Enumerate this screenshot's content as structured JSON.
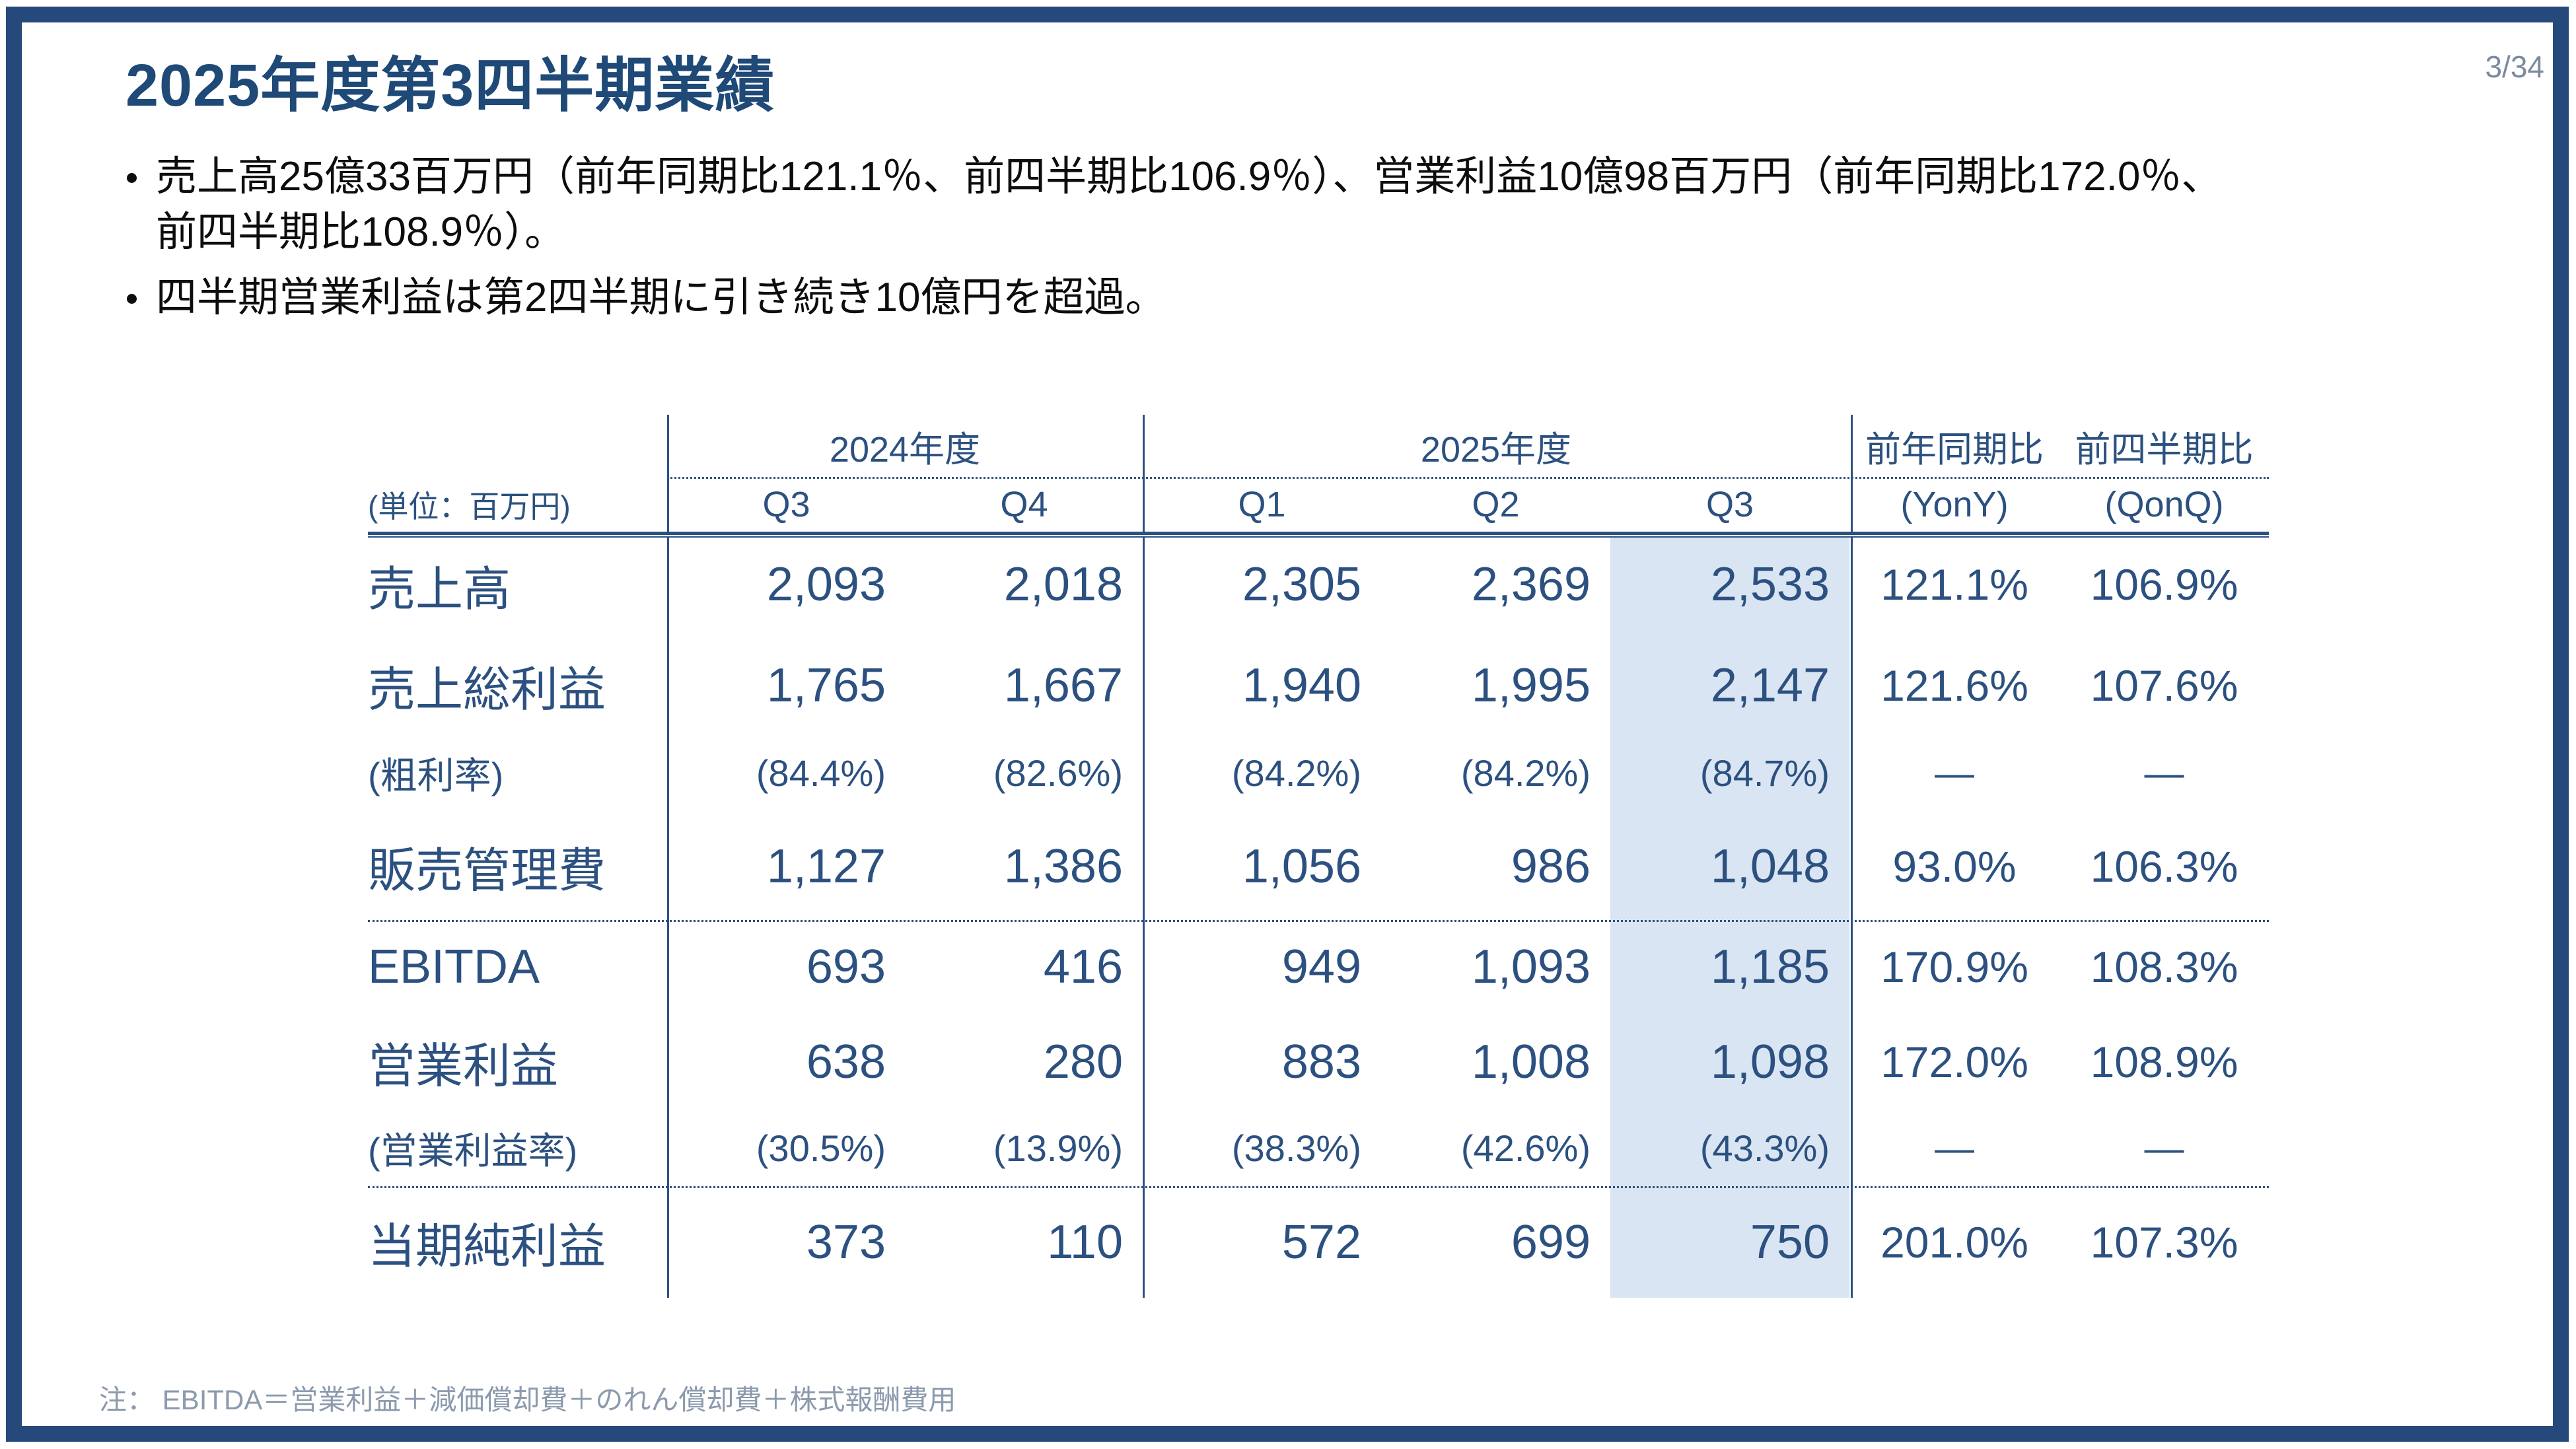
{
  "slide": {
    "title": "2025年度第3四半期業績",
    "page_number": "3/34",
    "bullets": [
      "売上高25億33百万円（前年同期比121.1％、前四半期比106.9％）、営業利益10億98百万円（前年同期比172.0％、\n前四半期比108.9％）。",
      "四半期営業利益は第2四半期に引き続き10億円を超過。"
    ],
    "footnote": "注： EBITDA＝営業利益＋減価償却費＋のれん償却費＋株式報酬費用"
  },
  "table": {
    "unit_label": "(単位：百万円)",
    "col_groups": [
      {
        "label": "2024年度"
      },
      {
        "label": "2025年度"
      },
      {
        "label": "前年同期比"
      },
      {
        "label": "前四半期比"
      }
    ],
    "col_headers": [
      "Q3",
      "Q4",
      "Q1",
      "Q2",
      "Q3",
      "(YonY)",
      "(QonQ)"
    ],
    "highlighted_column": "2025年度 Q3",
    "rows": [
      {
        "label": "売上高",
        "type": "main",
        "values": [
          "2,093",
          "2,018",
          "2,305",
          "2,369",
          "2,533",
          "121.1%",
          "106.9%"
        ]
      },
      {
        "label": "売上総利益",
        "type": "main",
        "values": [
          "1,765",
          "1,667",
          "1,940",
          "1,995",
          "2,147",
          "121.6%",
          "107.6%"
        ]
      },
      {
        "label": "(粗利率)",
        "type": "sub",
        "values": [
          "(84.4%)",
          "(82.6%)",
          "(84.2%)",
          "(84.2%)",
          "(84.7%)",
          "—",
          "—"
        ]
      },
      {
        "label": "販売管理費",
        "type": "main",
        "values": [
          "1,127",
          "1,386",
          "1,056",
          "986",
          "1,048",
          "93.0%",
          "106.3%"
        ]
      },
      {
        "label": "EBITDA",
        "type": "main",
        "values": [
          "693",
          "416",
          "949",
          "1,093",
          "1,185",
          "170.9%",
          "108.3%"
        ]
      },
      {
        "label": "営業利益",
        "type": "main",
        "values": [
          "638",
          "280",
          "883",
          "1,008",
          "1,098",
          "172.0%",
          "108.9%"
        ]
      },
      {
        "label": "(営業利益率)",
        "type": "sub",
        "values": [
          "(30.5%)",
          "(13.9%)",
          "(38.3%)",
          "(42.6%)",
          "(43.3%)",
          "—",
          "—"
        ]
      },
      {
        "label": "当期純利益",
        "type": "main",
        "values": [
          "373",
          "110",
          "572",
          "699",
          "750",
          "201.0%",
          "107.3%"
        ]
      }
    ]
  },
  "colors": {
    "frame_border": "#25497B",
    "title_text": "#1F4976",
    "table_text": "#2C5180",
    "highlight_fill": "#D9E5F2",
    "muted_text": "#8C9AAD",
    "body_text": "#0D0D0D"
  }
}
